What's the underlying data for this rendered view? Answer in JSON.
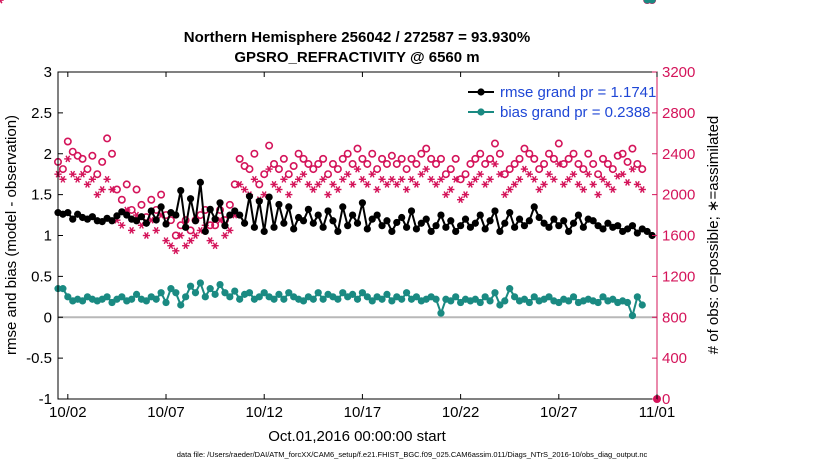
{
  "figure": {
    "title_line1": "Northern Hemisphere 256042 / 272587 = 93.930%",
    "title_line2": "GPSRO_REFRACTIVITY @ 6560 m",
    "xlabel": "Oct.01,2016 00:00:00 start",
    "footnote": "data file: /Users/raeder/DAI/ATM_forcXX/CAM6_setup/f.e21.FHIST_BGC.f09_025.CAM6assim.011/Diags_NTrS_2016-10/obs_diag_output.nc",
    "colors": {
      "rmse": "#000000",
      "bias": "#1a8a82",
      "obs": "#d4145a",
      "legend_text": "#1f47d6",
      "zero_line": "#b8b8b8"
    }
  },
  "chart_data": {
    "type": "line",
    "x_ticks": [
      "10/02",
      "10/07",
      "10/12",
      "10/17",
      "10/22",
      "10/27",
      "11/01"
    ],
    "x_tick_days": [
      2,
      7,
      12,
      17,
      22,
      27,
      32
    ],
    "xlim": [
      1.5,
      32.0
    ],
    "ylabel_left": "rmse and bias (model - observation)",
    "ylim_left": [
      -1,
      3
    ],
    "y_ticks_left": [
      "-1",
      "-0.5",
      "0",
      "0.5",
      "1",
      "1.5",
      "2",
      "2.5",
      "3"
    ],
    "ylabel_right": "# of obs: o=possible; ∗=assimilated",
    "ylim_right": [
      0,
      3200
    ],
    "y_ticks_right": [
      "0",
      "400",
      "800",
      "1200",
      "1600",
      "2000",
      "2400",
      "2800",
      "3200"
    ],
    "legend": [
      {
        "label": "rmse grand pr = 1.1741",
        "series": "rmse"
      },
      {
        "label": "bias grand pr = 0.2388",
        "series": "bias"
      }
    ],
    "x_days": [
      1.5,
      1.75,
      2.0,
      2.25,
      2.5,
      2.75,
      3.0,
      3.25,
      3.5,
      3.75,
      4.0,
      4.25,
      4.5,
      4.75,
      5.0,
      5.25,
      5.5,
      5.75,
      6.0,
      6.25,
      6.5,
      6.75,
      7.0,
      7.25,
      7.5,
      7.75,
      8.0,
      8.25,
      8.5,
      8.75,
      9.0,
      9.25,
      9.5,
      9.75,
      10.0,
      10.25,
      10.5,
      10.75,
      11.0,
      11.25,
      11.5,
      11.75,
      12.0,
      12.25,
      12.5,
      12.75,
      13.0,
      13.25,
      13.5,
      13.75,
      14.0,
      14.25,
      14.5,
      14.75,
      15.0,
      15.25,
      15.5,
      15.75,
      16.0,
      16.25,
      16.5,
      16.75,
      17.0,
      17.25,
      17.5,
      17.75,
      18.0,
      18.25,
      18.5,
      18.75,
      19.0,
      19.25,
      19.5,
      19.75,
      20.0,
      20.25,
      20.5,
      20.75,
      21.0,
      21.25,
      21.5,
      21.75,
      22.0,
      22.25,
      22.5,
      22.75,
      23.0,
      23.25,
      23.5,
      23.75,
      24.0,
      24.25,
      24.5,
      24.75,
      25.0,
      25.25,
      25.5,
      25.75,
      26.0,
      26.25,
      26.5,
      26.75,
      27.0,
      27.25,
      27.5,
      27.75,
      28.0,
      28.25,
      28.5,
      28.75,
      29.0,
      29.25,
      29.5,
      29.75,
      30.0,
      30.25,
      30.5,
      30.75,
      31.0,
      31.25,
      31.5,
      31.75
    ],
    "series": [
      {
        "name": "rmse",
        "values": [
          1.28,
          1.26,
          1.28,
          1.2,
          1.26,
          1.22,
          1.2,
          1.23,
          1.18,
          1.17,
          1.21,
          1.18,
          1.24,
          1.29,
          1.25,
          1.2,
          1.18,
          1.23,
          1.15,
          1.3,
          1.19,
          1.35,
          1.14,
          1.28,
          1.25,
          1.55,
          1.1,
          1.45,
          1.18,
          1.65,
          1.05,
          1.32,
          1.2,
          1.4,
          1.12,
          1.25,
          1.3,
          1.25,
          1.15,
          1.48,
          1.1,
          1.42,
          1.05,
          1.47,
          1.1,
          1.38,
          1.15,
          1.35,
          1.08,
          1.22,
          1.18,
          1.32,
          1.15,
          1.25,
          1.1,
          1.3,
          1.18,
          1.05,
          1.35,
          1.12,
          1.25,
          1.15,
          1.4,
          1.08,
          1.2,
          1.25,
          1.12,
          1.18,
          1.05,
          1.16,
          1.22,
          1.1,
          1.3,
          1.08,
          1.15,
          1.2,
          1.05,
          1.12,
          1.25,
          1.1,
          1.18,
          1.05,
          1.12,
          1.2,
          1.1,
          1.15,
          1.25,
          1.08,
          1.18,
          1.3,
          1.05,
          1.15,
          1.28,
          1.1,
          1.2,
          1.12,
          1.18,
          1.35,
          1.22,
          1.15,
          1.1,
          1.2,
          1.12,
          1.18,
          1.05,
          1.15,
          1.25,
          1.1,
          1.2,
          1.18,
          1.12,
          1.08,
          1.15,
          1.1,
          1.12,
          1.05,
          1.08,
          1.12,
          1.03,
          1.08,
          1.05,
          1.0
        ]
      },
      {
        "name": "bias",
        "values": [
          0.35,
          0.35,
          0.25,
          0.2,
          0.22,
          0.2,
          0.25,
          0.22,
          0.2,
          0.22,
          0.25,
          0.18,
          0.22,
          0.25,
          0.2,
          0.22,
          0.28,
          0.22,
          0.2,
          0.25,
          0.22,
          0.3,
          0.18,
          0.35,
          0.3,
          0.15,
          0.25,
          0.38,
          0.3,
          0.42,
          0.25,
          0.35,
          0.28,
          0.4,
          0.3,
          0.25,
          0.32,
          0.22,
          0.28,
          0.3,
          0.22,
          0.25,
          0.3,
          0.25,
          0.22,
          0.28,
          0.22,
          0.3,
          0.25,
          0.22,
          0.2,
          0.25,
          0.22,
          0.3,
          0.22,
          0.28,
          0.25,
          0.22,
          0.3,
          0.25,
          0.28,
          0.22,
          0.3,
          0.25,
          0.2,
          0.25,
          0.22,
          0.28,
          0.2,
          0.25,
          0.22,
          0.3,
          0.22,
          0.25,
          0.2,
          0.22,
          0.25,
          0.22,
          0.05,
          0.22,
          0.2,
          0.25,
          0.18,
          0.22,
          0.2,
          0.22,
          0.18,
          0.25,
          0.2,
          0.3,
          0.15,
          0.2,
          0.35,
          0.25,
          0.2,
          0.22,
          0.18,
          0.25,
          0.2,
          0.22,
          0.25,
          0.2,
          0.18,
          0.22,
          0.2,
          0.25,
          0.18,
          0.2,
          0.22,
          0.2,
          0.18,
          0.25,
          0.2,
          0.22,
          0.18,
          0.2,
          0.18,
          0.02,
          0.25,
          0.15
        ]
      },
      {
        "name": "possible",
        "values": [
          2320,
          2250,
          2520,
          2420,
          2380,
          2350,
          2250,
          2380,
          2200,
          2320,
          2550,
          2400,
          2050,
          1950,
          2100,
          1850,
          2050,
          1900,
          1780,
          1950,
          1850,
          2000,
          1800,
          1750,
          1600,
          1700,
          1750,
          1650,
          1750,
          1800,
          1850,
          1700,
          1700,
          1850,
          1750,
          1900,
          2100,
          2350,
          2280,
          2250,
          2400,
          2100,
          2200,
          2480,
          2300,
          2250,
          2350,
          2200,
          2280,
          2400,
          2350,
          2300,
          2250,
          2300,
          2350,
          2200,
          2300,
          2250,
          2350,
          2400,
          2300,
          2450,
          2350,
          2300,
          2400,
          2250,
          2350,
          2300,
          2380,
          2300,
          2350,
          2250,
          2350,
          2300,
          2400,
          2450,
          2350,
          2300,
          2350,
          2200,
          2250,
          2350,
          2150,
          2200,
          2300,
          2350,
          2400,
          2300,
          2350,
          2500,
          2400,
          2200,
          2250,
          2300,
          2350,
          2450,
          2400,
          2350,
          2250,
          2300,
          2400,
          2350,
          2500,
          2300,
          2350,
          2400,
          2300,
          2250,
          2400,
          2300,
          2200,
          2350,
          2300,
          2250,
          2380,
          2400,
          2320,
          2450,
          2300,
          2250
        ]
      },
      {
        "name": "assimilated",
        "values": [
          2200,
          2150,
          2350,
          2200,
          2150,
          2200,
          2100,
          2150,
          2000,
          2050,
          2150,
          2050,
          1750,
          1700,
          1850,
          1650,
          1800,
          1700,
          1600,
          1750,
          1650,
          1800,
          1550,
          1500,
          1450,
          1600,
          1500,
          1550,
          1600,
          1650,
          1700,
          1550,
          1500,
          1750,
          1600,
          1650,
          1800,
          2100,
          2050,
          2000,
          2150,
          1950,
          2000,
          2250,
          2100,
          2050,
          2150,
          2000,
          2100,
          2150,
          2200,
          2100,
          2050,
          2100,
          2150,
          2000,
          2100,
          2050,
          2150,
          2200,
          2100,
          2250,
          2150,
          2100,
          2200,
          2050,
          2150,
          2100,
          2150,
          2100,
          2150,
          2050,
          2150,
          2100,
          2200,
          2250,
          2150,
          2100,
          2150,
          2000,
          2050,
          2150,
          1950,
          2000,
          2100,
          2150,
          2200,
          2100,
          2150,
          2300,
          2200,
          2000,
          2050,
          2100,
          2150,
          2250,
          2200,
          2150,
          2050,
          2100,
          2200,
          2150,
          2300,
          2100,
          2150,
          2200,
          2100,
          2050,
          2200,
          2100,
          2000,
          2150,
          2100,
          2050,
          2180,
          2200,
          2120,
          2250,
          2100,
          2050
        ]
      }
    ]
  }
}
